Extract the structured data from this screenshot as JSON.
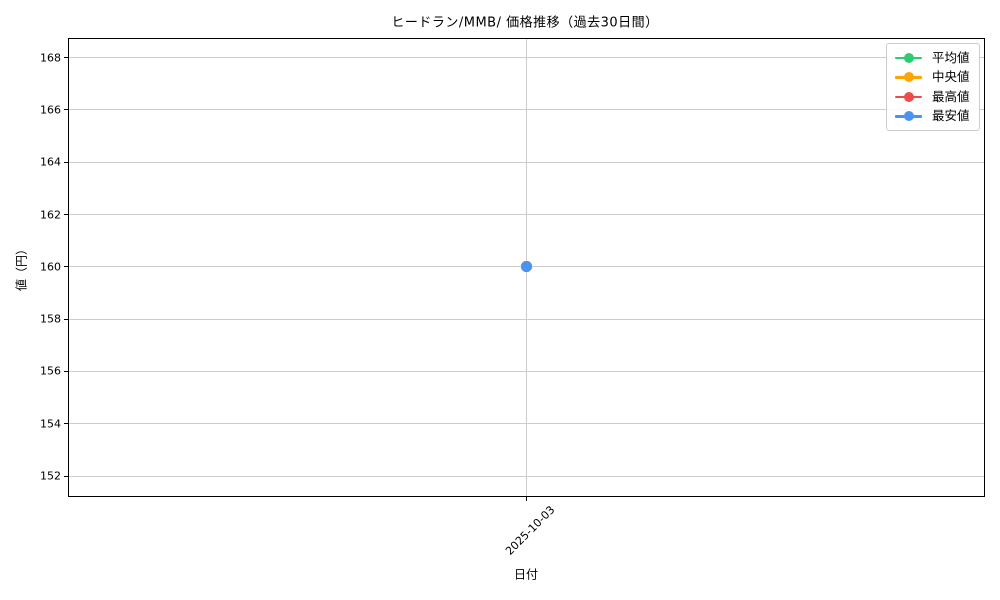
{
  "chart_data": {
    "type": "line",
    "title": "ヒードラン/MMB/ 価格推移（過去30日間）",
    "xlabel": "日付",
    "ylabel": "値（円）",
    "x": [
      "2025-10-03"
    ],
    "series": [
      {
        "name": "平均値",
        "color": "#2ecc71",
        "values": [
          160
        ]
      },
      {
        "name": "中央値",
        "color": "#ffa500",
        "values": [
          160
        ]
      },
      {
        "name": "最高値",
        "color": "#ee4b4b",
        "values": [
          160
        ]
      },
      {
        "name": "最安値",
        "color": "#4b93f1",
        "values": [
          160
        ]
      }
    ],
    "yticks": [
      152,
      154,
      156,
      158,
      160,
      162,
      164,
      166,
      168
    ],
    "ylim": [
      151.2,
      168.75
    ],
    "grid": true,
    "legend_position": "upper right",
    "colors": {
      "grid": "#cccccc",
      "axis": "#000000",
      "text": "#000000",
      "legend_border": "#cccccc",
      "background": "#ffffff"
    }
  }
}
